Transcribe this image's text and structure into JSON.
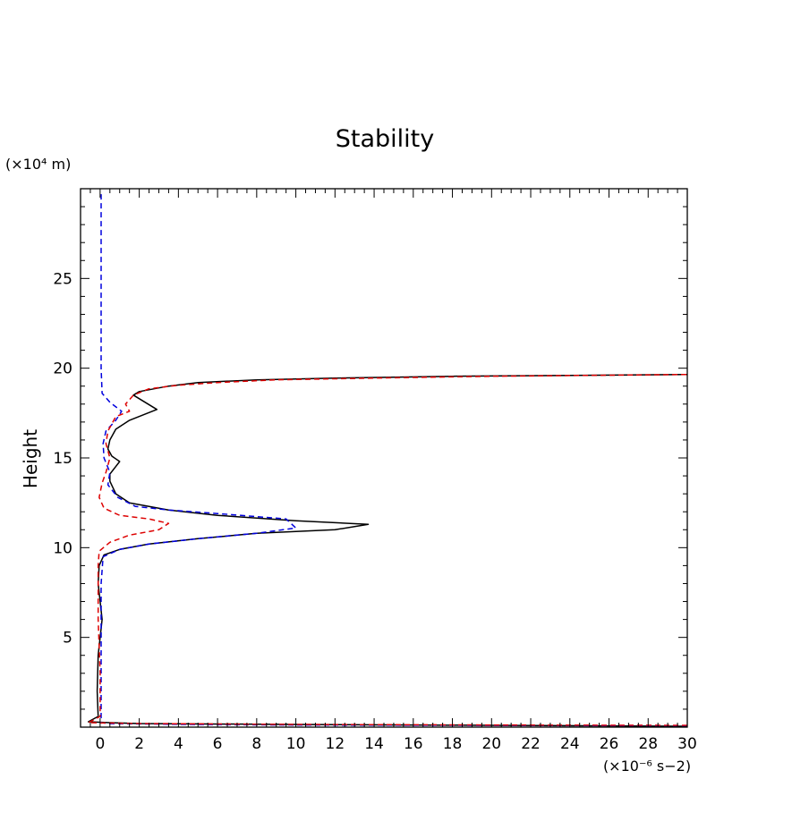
{
  "chart_data": {
    "type": "line",
    "title": "Stability",
    "xlabel": "",
    "ylabel": "Height",
    "x_unit_label": "(×10⁻⁶ s−2)",
    "y_unit_label": "(×10⁴ m)",
    "xlim": [
      -1,
      30
    ],
    "ylim": [
      0,
      30
    ],
    "x_tick_values": [
      0,
      2,
      4,
      6,
      8,
      10,
      12,
      14,
      16,
      18,
      20,
      22,
      24,
      26,
      28,
      30
    ],
    "x_tick_labels": [
      "0",
      "2",
      "4",
      "6",
      "8",
      "10",
      "12",
      "14",
      "16",
      "18",
      "20",
      "22",
      "24",
      "26",
      "28",
      "30"
    ],
    "y_tick_values": [
      5,
      10,
      15,
      20,
      25
    ],
    "y_tick_labels": [
      "5",
      "10",
      "15",
      "20",
      "25"
    ],
    "grid": false,
    "series": [
      {
        "color": "#000000",
        "dash": "solid",
        "points": [
          [
            30,
            0.05
          ],
          [
            20,
            0.1
          ],
          [
            10,
            0.15
          ],
          [
            2,
            0.2
          ],
          [
            0.5,
            0.25
          ],
          [
            -0.6,
            0.3
          ],
          [
            -0.1,
            0.6
          ],
          [
            -0.15,
            2
          ],
          [
            -0.1,
            4
          ],
          [
            0.1,
            6
          ],
          [
            -0.1,
            8
          ],
          [
            -0.05,
            9
          ],
          [
            0.2,
            9.6
          ],
          [
            1,
            9.9
          ],
          [
            2.5,
            10.2
          ],
          [
            5,
            10.5
          ],
          [
            8,
            10.8
          ],
          [
            12,
            11
          ],
          [
            13.7,
            11.3
          ],
          [
            10,
            11.5
          ],
          [
            6,
            11.8
          ],
          [
            3.5,
            12.1
          ],
          [
            1.5,
            12.5
          ],
          [
            0.8,
            13
          ],
          [
            0.5,
            13.7
          ],
          [
            0.5,
            14.1
          ],
          [
            1,
            14.8
          ],
          [
            0.6,
            15.1
          ],
          [
            0.4,
            15.5
          ],
          [
            0.5,
            16
          ],
          [
            0.8,
            16.6
          ],
          [
            1.5,
            17.1
          ],
          [
            2.9,
            17.7
          ],
          [
            1.7,
            18.5
          ],
          [
            2,
            18.7
          ],
          [
            3.5,
            19
          ],
          [
            5,
            19.2
          ],
          [
            8,
            19.35
          ],
          [
            12,
            19.45
          ],
          [
            18,
            19.55
          ],
          [
            24,
            19.6
          ],
          [
            30,
            19.65
          ]
        ]
      },
      {
        "color": "#0000dd",
        "dash": "dashed",
        "points": [
          [
            30,
            0.08
          ],
          [
            20,
            0.1
          ],
          [
            10,
            0.12
          ],
          [
            5,
            0.15
          ],
          [
            2,
            0.18
          ],
          [
            0.5,
            0.2
          ],
          [
            0.05,
            0.25
          ],
          [
            0.05,
            2
          ],
          [
            0.05,
            5
          ],
          [
            0.05,
            8
          ],
          [
            0.15,
            9.5
          ],
          [
            1,
            9.9
          ],
          [
            2.5,
            10.2
          ],
          [
            5,
            10.5
          ],
          [
            8,
            10.8
          ],
          [
            10,
            11.1
          ],
          [
            9.5,
            11.6
          ],
          [
            6,
            11.9
          ],
          [
            3.5,
            12.1
          ],
          [
            1.8,
            12.3
          ],
          [
            0.9,
            12.8
          ],
          [
            0.4,
            13.5
          ],
          [
            0.5,
            14.2
          ],
          [
            0.2,
            15
          ],
          [
            0.15,
            15.8
          ],
          [
            0.3,
            16.5
          ],
          [
            0.8,
            17.1
          ],
          [
            1.1,
            17.6
          ],
          [
            0.5,
            18.1
          ],
          [
            0.1,
            18.6
          ],
          [
            0.05,
            20
          ],
          [
            0.05,
            25
          ],
          [
            0.05,
            29.8
          ]
        ]
      },
      {
        "color": "#dd0000",
        "dash": "dashed",
        "points": [
          [
            30,
            0.1
          ],
          [
            20,
            0.12
          ],
          [
            10,
            0.15
          ],
          [
            2,
            0.2
          ],
          [
            -0.6,
            0.25
          ],
          [
            0,
            0.6
          ],
          [
            0,
            3
          ],
          [
            -0.1,
            6
          ],
          [
            -0.1,
            9
          ],
          [
            -0.05,
            9.8
          ],
          [
            0.5,
            10.3
          ],
          [
            1.5,
            10.7
          ],
          [
            3,
            11
          ],
          [
            3.5,
            11.35
          ],
          [
            2.5,
            11.6
          ],
          [
            1,
            11.8
          ],
          [
            0.2,
            12.2
          ],
          [
            -0.05,
            12.8
          ],
          [
            0.1,
            13.6
          ],
          [
            0.3,
            14.2
          ],
          [
            0.5,
            15
          ],
          [
            0.3,
            15.8
          ],
          [
            0.4,
            16.5
          ],
          [
            0.8,
            17.3
          ],
          [
            1.5,
            17.6
          ],
          [
            1.3,
            18
          ],
          [
            1.7,
            18.5
          ],
          [
            2.5,
            18.85
          ],
          [
            4,
            19.05
          ],
          [
            6,
            19.2
          ],
          [
            9,
            19.35
          ],
          [
            14,
            19.45
          ],
          [
            20,
            19.55
          ],
          [
            25,
            19.6
          ],
          [
            30,
            19.65
          ]
        ]
      }
    ]
  }
}
